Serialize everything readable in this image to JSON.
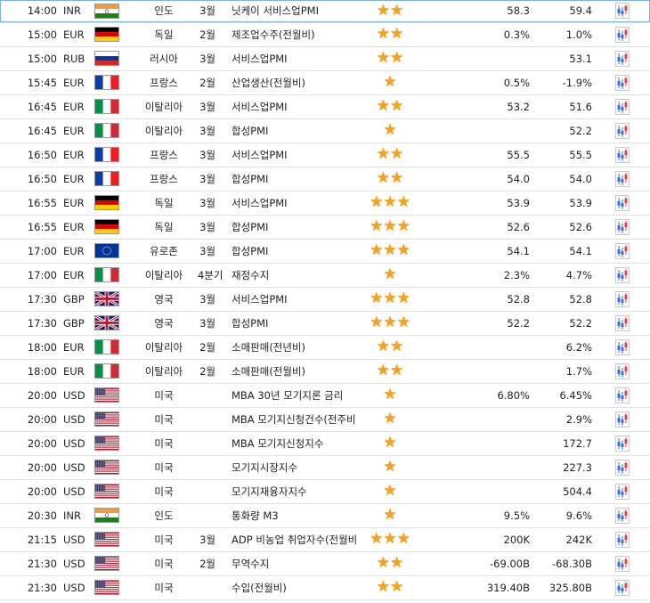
{
  "rows": [
    {
      "time": "14:00",
      "currency": "INR",
      "flag": "india",
      "country": "인도",
      "period": "3월",
      "event": "닛케이 서비스업PMI",
      "importance": 2,
      "actual": "",
      "forecast": "58.3",
      "previous": "59.4"
    },
    {
      "time": "15:00",
      "currency": "EUR",
      "flag": "germany",
      "country": "독일",
      "period": "2월",
      "event": "제조업수주(전월비)",
      "importance": 2,
      "actual": "",
      "forecast": "0.3%",
      "previous": "1.0%"
    },
    {
      "time": "15:00",
      "currency": "RUB",
      "flag": "russia",
      "country": "러시아",
      "period": "3월",
      "event": "서비스업PMI",
      "importance": 2,
      "actual": "",
      "forecast": "",
      "previous": "53.1"
    },
    {
      "time": "15:45",
      "currency": "EUR",
      "flag": "france",
      "country": "프랑스",
      "period": "2월",
      "event": "산업생산(전월비)",
      "importance": 1,
      "actual": "",
      "forecast": "0.5%",
      "previous": "-1.9%"
    },
    {
      "time": "16:45",
      "currency": "EUR",
      "flag": "italy",
      "country": "이탈리아",
      "period": "3월",
      "event": "서비스업PMI",
      "importance": 2,
      "actual": "",
      "forecast": "53.2",
      "previous": "51.6"
    },
    {
      "time": "16:45",
      "currency": "EUR",
      "flag": "italy",
      "country": "이탈리아",
      "period": "3월",
      "event": "합성PMI",
      "importance": 1,
      "actual": "",
      "forecast": "",
      "previous": "52.2"
    },
    {
      "time": "16:50",
      "currency": "EUR",
      "flag": "france",
      "country": "프랑스",
      "period": "3월",
      "event": "서비스업PMI",
      "importance": 2,
      "actual": "",
      "forecast": "55.5",
      "previous": "55.5"
    },
    {
      "time": "16:50",
      "currency": "EUR",
      "flag": "france",
      "country": "프랑스",
      "period": "3월",
      "event": "합성PMI",
      "importance": 2,
      "actual": "",
      "forecast": "54.0",
      "previous": "54.0"
    },
    {
      "time": "16:55",
      "currency": "EUR",
      "flag": "germany",
      "country": "독일",
      "period": "3월",
      "event": "서비스업PMI",
      "importance": 3,
      "actual": "",
      "forecast": "53.9",
      "previous": "53.9"
    },
    {
      "time": "16:55",
      "currency": "EUR",
      "flag": "germany",
      "country": "독일",
      "period": "3월",
      "event": "합성PMI",
      "importance": 3,
      "actual": "",
      "forecast": "52.6",
      "previous": "52.6"
    },
    {
      "time": "17:00",
      "currency": "EUR",
      "flag": "eu",
      "country": "유로존",
      "period": "3월",
      "event": "합성PMI",
      "importance": 3,
      "actual": "",
      "forecast": "54.1",
      "previous": "54.1"
    },
    {
      "time": "17:00",
      "currency": "EUR",
      "flag": "italy",
      "country": "이탈리아",
      "period": "4분기",
      "event": "재정수지",
      "importance": 1,
      "actual": "",
      "forecast": "2.3%",
      "previous": "4.7%"
    },
    {
      "time": "17:30",
      "currency": "GBP",
      "flag": "uk",
      "country": "영국",
      "period": "3월",
      "event": "서비스업PMI",
      "importance": 3,
      "actual": "",
      "forecast": "52.8",
      "previous": "52.8"
    },
    {
      "time": "17:30",
      "currency": "GBP",
      "flag": "uk",
      "country": "영국",
      "period": "3월",
      "event": "합성PMI",
      "importance": 3,
      "actual": "",
      "forecast": "52.2",
      "previous": "52.2"
    },
    {
      "time": "18:00",
      "currency": "EUR",
      "flag": "italy",
      "country": "이탈리아",
      "period": "2월",
      "event": "소매판매(전년비)",
      "importance": 2,
      "actual": "",
      "forecast": "",
      "previous": "6.2%"
    },
    {
      "time": "18:00",
      "currency": "EUR",
      "flag": "italy",
      "country": "이탈리아",
      "period": "2월",
      "event": "소매판매(전월비)",
      "importance": 2,
      "actual": "",
      "forecast": "",
      "previous": "1.7%"
    },
    {
      "time": "20:00",
      "currency": "USD",
      "flag": "usa",
      "country": "미국",
      "period": "",
      "event": "MBA 30년 모기지론 금리",
      "importance": 1,
      "actual": "",
      "forecast": "6.80%",
      "previous": "6.45%"
    },
    {
      "time": "20:00",
      "currency": "USD",
      "flag": "usa",
      "country": "미국",
      "period": "",
      "event": "MBA 모기지신청건수(전주비)",
      "importance": 1,
      "actual": "",
      "forecast": "",
      "previous": "2.9%"
    },
    {
      "time": "20:00",
      "currency": "USD",
      "flag": "usa",
      "country": "미국",
      "period": "",
      "event": "MBA 모기지신청지수",
      "importance": 1,
      "actual": "",
      "forecast": "",
      "previous": "172.7"
    },
    {
      "time": "20:00",
      "currency": "USD",
      "flag": "usa",
      "country": "미국",
      "period": "",
      "event": "모기지시장지수",
      "importance": 1,
      "actual": "",
      "forecast": "",
      "previous": "227.3"
    },
    {
      "time": "20:00",
      "currency": "USD",
      "flag": "usa",
      "country": "미국",
      "period": "",
      "event": "모기지재융자지수",
      "importance": 1,
      "actual": "",
      "forecast": "",
      "previous": "504.4"
    },
    {
      "time": "20:30",
      "currency": "INR",
      "flag": "india",
      "country": "인도",
      "period": "",
      "event": "통화량 M3",
      "importance": 1,
      "actual": "",
      "forecast": "9.5%",
      "previous": "9.6%"
    },
    {
      "time": "21:15",
      "currency": "USD",
      "flag": "usa",
      "country": "미국",
      "period": "3월",
      "event": "ADP 비농업 취업자수(전월비)",
      "importance": 3,
      "actual": "",
      "forecast": "200K",
      "previous": "242K"
    },
    {
      "time": "21:30",
      "currency": "USD",
      "flag": "usa",
      "country": "미국",
      "period": "2월",
      "event": "무역수지",
      "importance": 2,
      "actual": "",
      "forecast": "-69.00B",
      "previous": "-68.30B"
    },
    {
      "time": "21:30",
      "currency": "USD",
      "flag": "usa",
      "country": "미국",
      "period": "",
      "event": "수입(전월비)",
      "importance": 2,
      "actual": "",
      "forecast": "319.40B",
      "previous": "325.80B"
    }
  ]
}
